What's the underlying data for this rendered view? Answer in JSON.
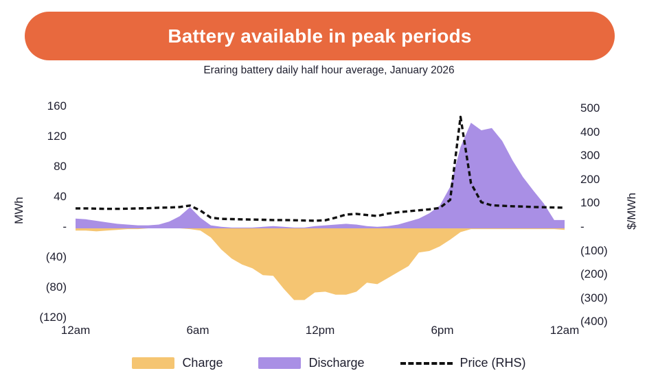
{
  "header": {
    "title": "Battery available in peak periods",
    "subtitle": "Eraring battery daily half hour average, January 2026"
  },
  "colors": {
    "banner": "#E8693E",
    "banner_text": "#FFFFFF",
    "text": "#1E1E2E",
    "charge_fill": "#F5C572",
    "discharge_fill": "#A98FE5",
    "price_line": "#111111"
  },
  "chart_data": {
    "type": "area",
    "title": "Battery available in peak periods",
    "subtitle": "Eraring battery daily half hour average, January 2026",
    "grid": false,
    "x_tick_labels": [
      "12am",
      "6am",
      "12pm",
      "6pm",
      "12am"
    ],
    "left_axis": {
      "label": "MWh",
      "ticks": [
        "160",
        "120",
        "80",
        "40",
        "-",
        "(40)",
        "(80)",
        "(120)"
      ],
      "tick_values": [
        160,
        120,
        80,
        40,
        0,
        -40,
        -80,
        -120
      ],
      "range": [
        -120,
        160
      ]
    },
    "right_axis": {
      "label": "$/MWh",
      "ticks": [
        "500",
        "400",
        "300",
        "200",
        "100",
        "-",
        "(100)",
        "(200)",
        "(300)",
        "(400)"
      ],
      "tick_values": [
        500,
        400,
        300,
        200,
        100,
        0,
        -100,
        -200,
        -300,
        -400
      ],
      "range": [
        -400,
        500
      ]
    },
    "x": [
      "12:00am",
      "12:30am",
      "1:00am",
      "1:30am",
      "2:00am",
      "2:30am",
      "3:00am",
      "3:30am",
      "4:00am",
      "4:30am",
      "5:00am",
      "5:30am",
      "6:00am",
      "6:30am",
      "7:00am",
      "7:30am",
      "8:00am",
      "8:30am",
      "9:00am",
      "9:30am",
      "10:00am",
      "10:30am",
      "11:00am",
      "11:30am",
      "12:00pm",
      "12:30pm",
      "1:00pm",
      "1:30pm",
      "2:00pm",
      "2:30pm",
      "3:00pm",
      "3:30pm",
      "4:00pm",
      "4:30pm",
      "5:00pm",
      "5:30pm",
      "6:00pm",
      "6:30pm",
      "7:00pm",
      "7:30pm",
      "8:00pm",
      "8:30pm",
      "9:00pm",
      "9:30pm",
      "10:00pm",
      "10:30pm",
      "11:00pm",
      "11:30pm"
    ],
    "series": [
      {
        "name": "Charge",
        "type": "area",
        "axis": "left",
        "unit": "MWh",
        "color": "#F5C572",
        "values": [
          -3,
          -3,
          -4,
          -3,
          -2,
          -1,
          -1,
          0,
          0,
          0,
          0,
          -1,
          -3,
          -12,
          -28,
          -40,
          -48,
          -53,
          -62,
          -63,
          -80,
          -95,
          -95,
          -85,
          -84,
          -88,
          -88,
          -84,
          -72,
          -74,
          -66,
          -58,
          -50,
          -32,
          -30,
          -24,
          -15,
          -5,
          -1,
          -1,
          -1,
          -1,
          -1,
          -1,
          -1,
          -1,
          -1,
          -2
        ]
      },
      {
        "name": "Discharge",
        "type": "area",
        "axis": "left",
        "unit": "MWh",
        "color": "#A98FE5",
        "values": [
          13,
          12,
          10,
          8,
          6,
          5,
          4,
          4,
          5,
          9,
          16,
          28,
          14,
          4,
          2,
          1,
          1,
          1,
          2,
          3,
          2,
          1,
          1,
          3,
          4,
          5,
          6,
          5,
          3,
          2,
          3,
          5,
          9,
          13,
          20,
          30,
          55,
          108,
          140,
          130,
          133,
          116,
          90,
          68,
          50,
          33,
          11,
          11
        ]
      },
      {
        "name": "Price (RHS)",
        "type": "dashed-line",
        "axis": "right",
        "unit": "$/MWh",
        "color": "#111111",
        "values": [
          84,
          84,
          83,
          82,
          82,
          83,
          84,
          85,
          87,
          88,
          90,
          96,
          75,
          45,
          40,
          39,
          38,
          37,
          36,
          35,
          35,
          34,
          33,
          32,
          34,
          45,
          58,
          61,
          56,
          52,
          62,
          68,
          72,
          76,
          80,
          86,
          120,
          470,
          190,
          110,
          97,
          95,
          93,
          92,
          90,
          89,
          88,
          87
        ]
      }
    ],
    "legend_position": "bottom"
  },
  "legend": {
    "items": [
      {
        "label": "Charge",
        "swatch": "orange-area-swatch"
      },
      {
        "label": "Discharge",
        "swatch": "purple-area-swatch"
      },
      {
        "label": "Price (RHS)",
        "swatch": "dashed-line-swatch"
      }
    ]
  }
}
